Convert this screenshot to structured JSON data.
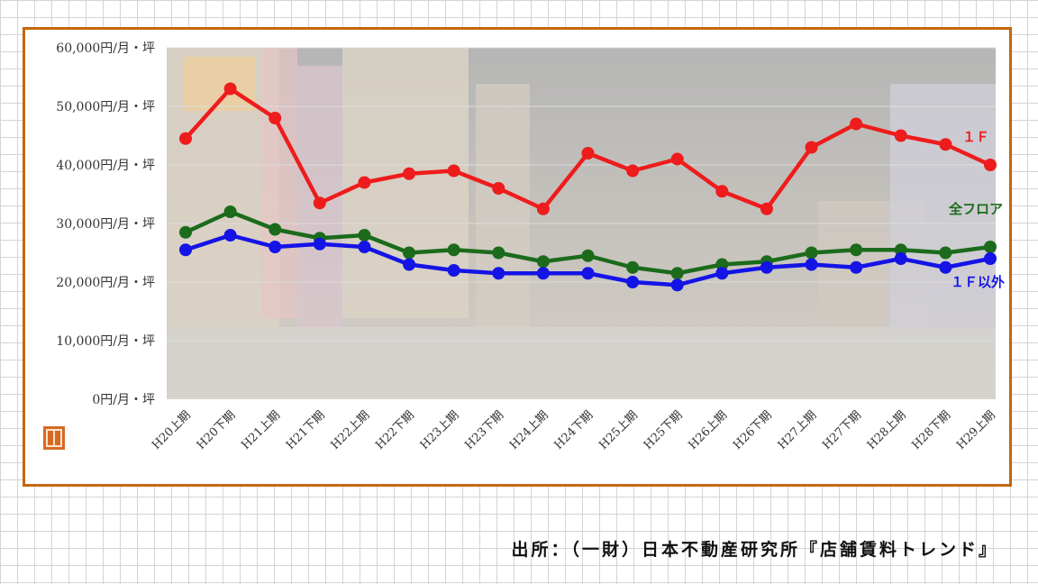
{
  "colors": {
    "frame": "#c5660c",
    "series_1f": "#ee1c1c",
    "series_all": "#1b6b1b",
    "series_non1f": "#1414e6"
  },
  "source": "出所：（一財）日本不動産研究所『店舗賃料トレンド』",
  "chart_data": {
    "type": "line",
    "categories": [
      "H20上期",
      "H20下期",
      "H21上期",
      "H21下期",
      "H22上期",
      "H22下期",
      "H23上期",
      "H23下期",
      "H24上期",
      "H24下期",
      "H25上期",
      "H25下期",
      "H26上期",
      "H26下期",
      "H27上期",
      "H27下期",
      "H28上期",
      "H28下期",
      "H29上期"
    ],
    "yticks": [
      "0円/月・坪",
      "10,000円/月・坪",
      "20,000円/月・坪",
      "30,000円/月・坪",
      "40,000円/月・坪",
      "50,000円/月・坪",
      "60,000円/月・坪"
    ],
    "ylim": [
      0,
      60000
    ],
    "background": "faded photo of a night-time shopping street",
    "series": [
      {
        "name": "１Ｆ",
        "color": "#ee1c1c",
        "values": [
          44500,
          53000,
          48000,
          33500,
          37000,
          38500,
          39000,
          36000,
          32500,
          42000,
          39000,
          41000,
          35500,
          32500,
          43000,
          47000,
          45000,
          43500,
          40000
        ]
      },
      {
        "name": "全フロア",
        "color": "#1b6b1b",
        "values": [
          28500,
          32000,
          29000,
          27500,
          28000,
          25000,
          25500,
          25000,
          23500,
          24500,
          22500,
          21500,
          23000,
          23500,
          25000,
          25500,
          25500,
          25000,
          26000
        ]
      },
      {
        "name": "１Ｆ以外",
        "color": "#1414e6",
        "values": [
          25500,
          28000,
          26000,
          26500,
          26000,
          23000,
          22000,
          21500,
          21500,
          21500,
          20000,
          19500,
          21500,
          22500,
          23000,
          22500,
          24000,
          22500,
          24000
        ]
      }
    ]
  }
}
